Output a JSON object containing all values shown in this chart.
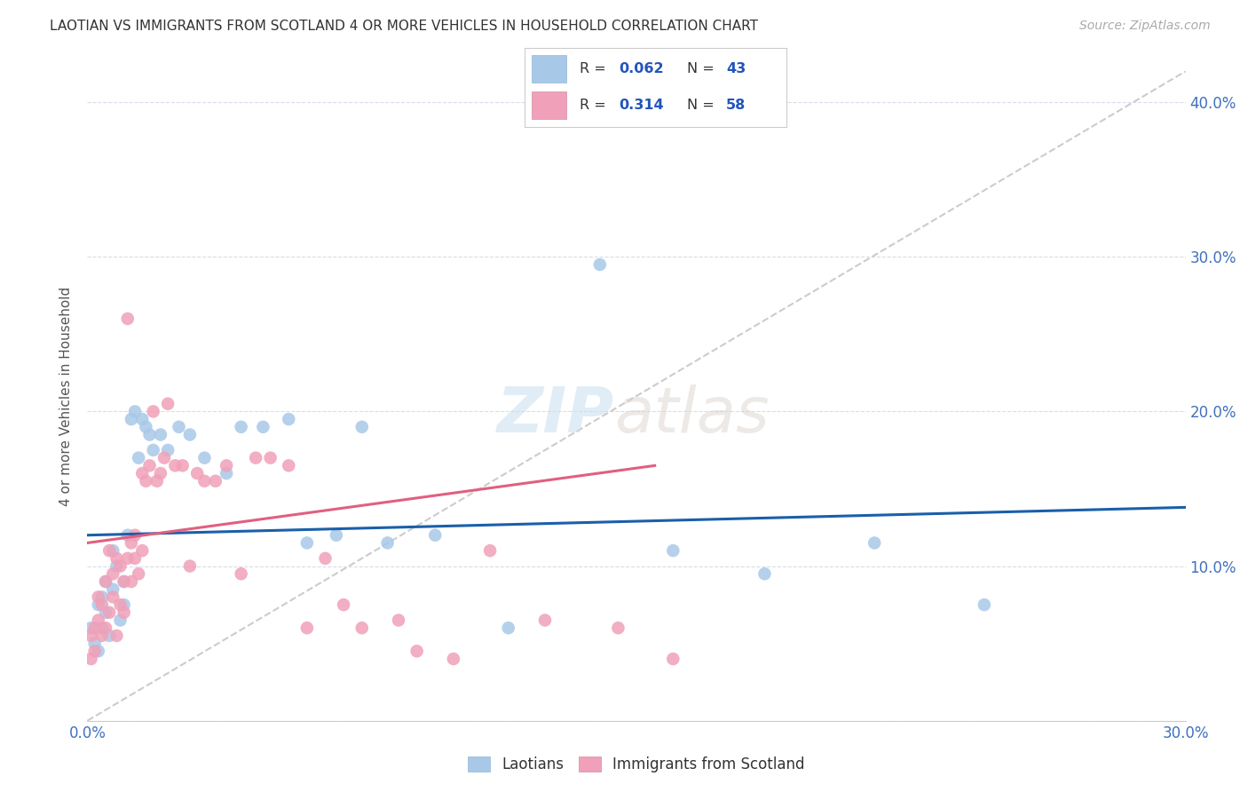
{
  "title": "LAOTIAN VS IMMIGRANTS FROM SCOTLAND 4 OR MORE VEHICLES IN HOUSEHOLD CORRELATION CHART",
  "source": "Source: ZipAtlas.com",
  "ylabel": "4 or more Vehicles in Household",
  "xlim": [
    0.0,
    0.3
  ],
  "ylim": [
    0.0,
    0.42
  ],
  "xticks": [
    0.0,
    0.05,
    0.1,
    0.15,
    0.2,
    0.25,
    0.3
  ],
  "yticks": [
    0.0,
    0.1,
    0.2,
    0.3,
    0.4
  ],
  "xtick_labels": [
    "0.0%",
    "",
    "",
    "",
    "",
    "",
    "30.0%"
  ],
  "ytick_labels_left": [
    "",
    "",
    "",
    "",
    ""
  ],
  "ytick_labels_right": [
    "",
    "10.0%",
    "20.0%",
    "30.0%",
    "40.0%"
  ],
  "color_blue": "#a8c8e8",
  "color_pink": "#f0a0b8",
  "line_blue": "#1a5faa",
  "line_pink": "#e06080",
  "line_diagonal": "#cccccc",
  "watermark_zip": "ZIP",
  "watermark_atlas": "atlas",
  "background_color": "#ffffff",
  "laotians_x": [
    0.001,
    0.002,
    0.003,
    0.003,
    0.004,
    0.004,
    0.005,
    0.005,
    0.006,
    0.007,
    0.007,
    0.008,
    0.009,
    0.01,
    0.01,
    0.011,
    0.012,
    0.013,
    0.014,
    0.015,
    0.016,
    0.017,
    0.018,
    0.02,
    0.022,
    0.025,
    0.028,
    0.032,
    0.038,
    0.042,
    0.048,
    0.055,
    0.06,
    0.068,
    0.075,
    0.082,
    0.095,
    0.115,
    0.14,
    0.16,
    0.185,
    0.215,
    0.245
  ],
  "laotians_y": [
    0.06,
    0.05,
    0.075,
    0.045,
    0.08,
    0.06,
    0.07,
    0.09,
    0.055,
    0.085,
    0.11,
    0.1,
    0.065,
    0.09,
    0.075,
    0.12,
    0.195,
    0.2,
    0.17,
    0.195,
    0.19,
    0.185,
    0.175,
    0.185,
    0.175,
    0.19,
    0.185,
    0.17,
    0.16,
    0.19,
    0.19,
    0.195,
    0.115,
    0.12,
    0.19,
    0.115,
    0.12,
    0.06,
    0.295,
    0.11,
    0.095,
    0.115,
    0.075
  ],
  "scotland_x": [
    0.001,
    0.001,
    0.002,
    0.002,
    0.003,
    0.003,
    0.004,
    0.004,
    0.005,
    0.005,
    0.006,
    0.006,
    0.007,
    0.007,
    0.008,
    0.008,
    0.009,
    0.009,
    0.01,
    0.01,
    0.011,
    0.011,
    0.012,
    0.012,
    0.013,
    0.013,
    0.014,
    0.015,
    0.015,
    0.016,
    0.017,
    0.018,
    0.019,
    0.02,
    0.021,
    0.022,
    0.024,
    0.026,
    0.028,
    0.03,
    0.032,
    0.035,
    0.038,
    0.042,
    0.046,
    0.05,
    0.055,
    0.06,
    0.065,
    0.07,
    0.075,
    0.085,
    0.09,
    0.1,
    0.11,
    0.125,
    0.145,
    0.16
  ],
  "scotland_y": [
    0.04,
    0.055,
    0.06,
    0.045,
    0.065,
    0.08,
    0.055,
    0.075,
    0.06,
    0.09,
    0.07,
    0.11,
    0.08,
    0.095,
    0.055,
    0.105,
    0.075,
    0.1,
    0.07,
    0.09,
    0.105,
    0.26,
    0.115,
    0.09,
    0.12,
    0.105,
    0.095,
    0.16,
    0.11,
    0.155,
    0.165,
    0.2,
    0.155,
    0.16,
    0.17,
    0.205,
    0.165,
    0.165,
    0.1,
    0.16,
    0.155,
    0.155,
    0.165,
    0.095,
    0.17,
    0.17,
    0.165,
    0.06,
    0.105,
    0.075,
    0.06,
    0.065,
    0.045,
    0.04,
    0.11,
    0.065,
    0.06,
    0.04
  ],
  "blue_line_x": [
    0.0,
    0.3
  ],
  "blue_line_y": [
    0.12,
    0.138
  ],
  "pink_line_x": [
    0.0,
    0.155
  ],
  "pink_line_y": [
    0.115,
    0.165
  ]
}
